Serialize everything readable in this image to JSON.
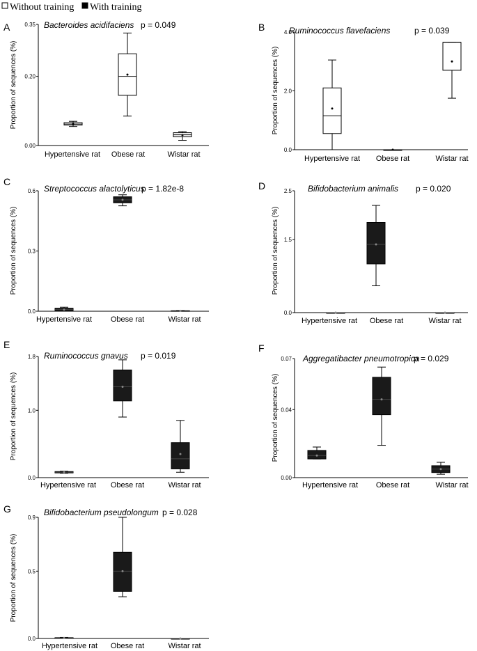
{
  "legend": {
    "without_training": "Without training",
    "with_training": "With training"
  },
  "colors": {
    "without_training_fill": "#ffffff",
    "with_training_fill": "#1a1a1a",
    "stroke": "#000000"
  },
  "chart_data": [
    {
      "panel": "A",
      "type": "box",
      "title": "Bacteroides acidifaciens",
      "pvalue": "p = 0.049",
      "ylabel": "Proportion of sequences (%)",
      "ylim": [
        0,
        0.35
      ],
      "yticks": [
        0.0,
        0.2,
        0.35
      ],
      "ytick_labels": [
        "0.00",
        "0.20",
        "0.35"
      ],
      "categories": [
        "Hypertensive rat",
        "Obese rat",
        "Wistar rat"
      ],
      "group": "Without training",
      "boxes": [
        {
          "min": 0.055,
          "q1": 0.059,
          "median": 0.062,
          "q3": 0.066,
          "max": 0.07,
          "mean": 0.062
        },
        {
          "min": 0.085,
          "q1": 0.145,
          "median": 0.2,
          "q3": 0.265,
          "max": 0.325,
          "mean": 0.205
        },
        {
          "min": 0.015,
          "q1": 0.025,
          "median": 0.031,
          "q3": 0.037,
          "max": 0.04,
          "mean": 0.03
        }
      ]
    },
    {
      "panel": "B",
      "type": "box",
      "title": "Ruminococcus flavefaciens",
      "pvalue": "p = 0.039",
      "ylabel": "Proportion of sequences (%)",
      "ylim": [
        0,
        4.0
      ],
      "yticks": [
        0.0,
        2.0,
        4.0
      ],
      "ytick_labels": [
        "0.0",
        "2.0",
        "4.0"
      ],
      "categories": [
        "Hypertensive rat",
        "Obese rat",
        "Wistar rat"
      ],
      "group": "Without training",
      "boxes": [
        {
          "min": 0.0,
          "q1": 0.55,
          "median": 1.15,
          "q3": 2.1,
          "max": 3.05,
          "mean": 1.4
        },
        {
          "min": 0.0,
          "q1": 0.0,
          "median": 0.0,
          "q3": 0.0,
          "max": 0.0,
          "mean": 0.0
        },
        {
          "min": 1.75,
          "q1": 2.7,
          "median": 3.65,
          "q3": 3.65,
          "max": 3.65,
          "mean": 3.0
        }
      ]
    },
    {
      "panel": "C",
      "type": "box",
      "title": "Streptococcus alactolyticus",
      "pvalue": "p = 1.82e-8",
      "ylabel": "Proportion of sequences (%)",
      "ylim": [
        0,
        0.6
      ],
      "yticks": [
        0.0,
        0.3,
        0.6
      ],
      "ytick_labels": [
        "0.0",
        "0.3",
        "0.6"
      ],
      "categories": [
        "Hypertensive rat",
        "Obese rat",
        "Wistar rat"
      ],
      "group": "With training",
      "boxes": [
        {
          "min": 0.0,
          "q1": 0.002,
          "median": 0.008,
          "q3": 0.015,
          "max": 0.02,
          "mean": 0.008
        },
        {
          "min": 0.525,
          "q1": 0.54,
          "median": 0.555,
          "q3": 0.57,
          "max": 0.58,
          "mean": 0.555
        },
        {
          "min": 0.0,
          "q1": 0.001,
          "median": 0.002,
          "q3": 0.003,
          "max": 0.004,
          "mean": 0.002
        }
      ]
    },
    {
      "panel": "D",
      "type": "box",
      "title": "Bifidobacterium animalis",
      "pvalue": "p = 0.020",
      "ylabel": "Proportion of sequences (%)",
      "ylim": [
        0,
        2.5
      ],
      "yticks": [
        0.0,
        1.5,
        2.5
      ],
      "ytick_labels": [
        "0.0",
        "1.5",
        "2.5"
      ],
      "categories": [
        "Hypertensive rat",
        "Obese rat",
        "Wistar rat"
      ],
      "group": "With training",
      "boxes": [
        {
          "min": 0.0,
          "q1": 0.0,
          "median": 0.0,
          "q3": 0.0,
          "max": 0.0,
          "mean": 0.0
        },
        {
          "min": 0.55,
          "q1": 1.0,
          "median": 1.4,
          "q3": 1.85,
          "max": 2.2,
          "mean": 1.4
        },
        {
          "min": 0.0,
          "q1": 0.0,
          "median": 0.0,
          "q3": 0.0,
          "max": 0.0,
          "mean": 0.0
        }
      ]
    },
    {
      "panel": "E",
      "type": "box",
      "title": "Ruminococcus gnavus",
      "pvalue": "p = 0.019",
      "ylabel": "Proportion of sequences (%)",
      "ylim": [
        0,
        1.8
      ],
      "yticks": [
        0.0,
        1.0,
        1.8
      ],
      "ytick_labels": [
        "0.0",
        "1.0",
        "1.8"
      ],
      "categories": [
        "Hypertensive rat",
        "Obese rat",
        "Wistar rat"
      ],
      "group": "With training",
      "boxes": [
        {
          "min": 0.065,
          "q1": 0.07,
          "median": 0.08,
          "q3": 0.09,
          "max": 0.095,
          "mean": 0.08
        },
        {
          "min": 0.9,
          "q1": 1.14,
          "median": 1.35,
          "q3": 1.6,
          "max": 1.75,
          "mean": 1.35
        },
        {
          "min": 0.08,
          "q1": 0.13,
          "median": 0.28,
          "q3": 0.52,
          "max": 0.85,
          "mean": 0.35
        }
      ]
    },
    {
      "panel": "F",
      "type": "box",
      "title": "Aggregatibacter pneumotropica",
      "pvalue": "p = 0.029",
      "ylabel": "Proportion of sequences (%)",
      "ylim": [
        0,
        0.07
      ],
      "yticks": [
        0.0,
        0.04,
        0.07
      ],
      "ytick_labels": [
        "0.00",
        "0.04",
        "0.07"
      ],
      "categories": [
        "Hypertensive rat",
        "Obese rat",
        "Wistar rat"
      ],
      "group": "With training",
      "boxes": [
        {
          "min": 0.011,
          "q1": 0.011,
          "median": 0.013,
          "q3": 0.016,
          "max": 0.018,
          "mean": 0.013
        },
        {
          "min": 0.019,
          "q1": 0.037,
          "median": 0.046,
          "q3": 0.059,
          "max": 0.065,
          "mean": 0.046
        },
        {
          "min": 0.002,
          "q1": 0.003,
          "median": 0.005,
          "q3": 0.007,
          "max": 0.009,
          "mean": 0.005
        }
      ]
    },
    {
      "panel": "G",
      "type": "box",
      "title": "Bifidobacterium pseudolongum",
      "pvalue": "p = 0.028",
      "ylabel": "Proportion of sequences (%)",
      "ylim": [
        0,
        0.9
      ],
      "yticks": [
        0.0,
        0.5,
        0.9
      ],
      "ytick_labels": [
        "0.0",
        "0.5",
        "0.9"
      ],
      "categories": [
        "Hypertensive rat",
        "Obese rat",
        "Wistar rat"
      ],
      "group": "With training",
      "boxes": [
        {
          "min": 0.0,
          "q1": 0.001,
          "median": 0.003,
          "q3": 0.006,
          "max": 0.008,
          "mean": 0.003
        },
        {
          "min": 0.31,
          "q1": 0.35,
          "median": 0.5,
          "q3": 0.64,
          "max": 0.9,
          "mean": 0.5
        },
        {
          "min": 0.0,
          "q1": 0.0,
          "median": 0.0,
          "q3": 0.0,
          "max": 0.0,
          "mean": 0.0
        }
      ]
    }
  ]
}
